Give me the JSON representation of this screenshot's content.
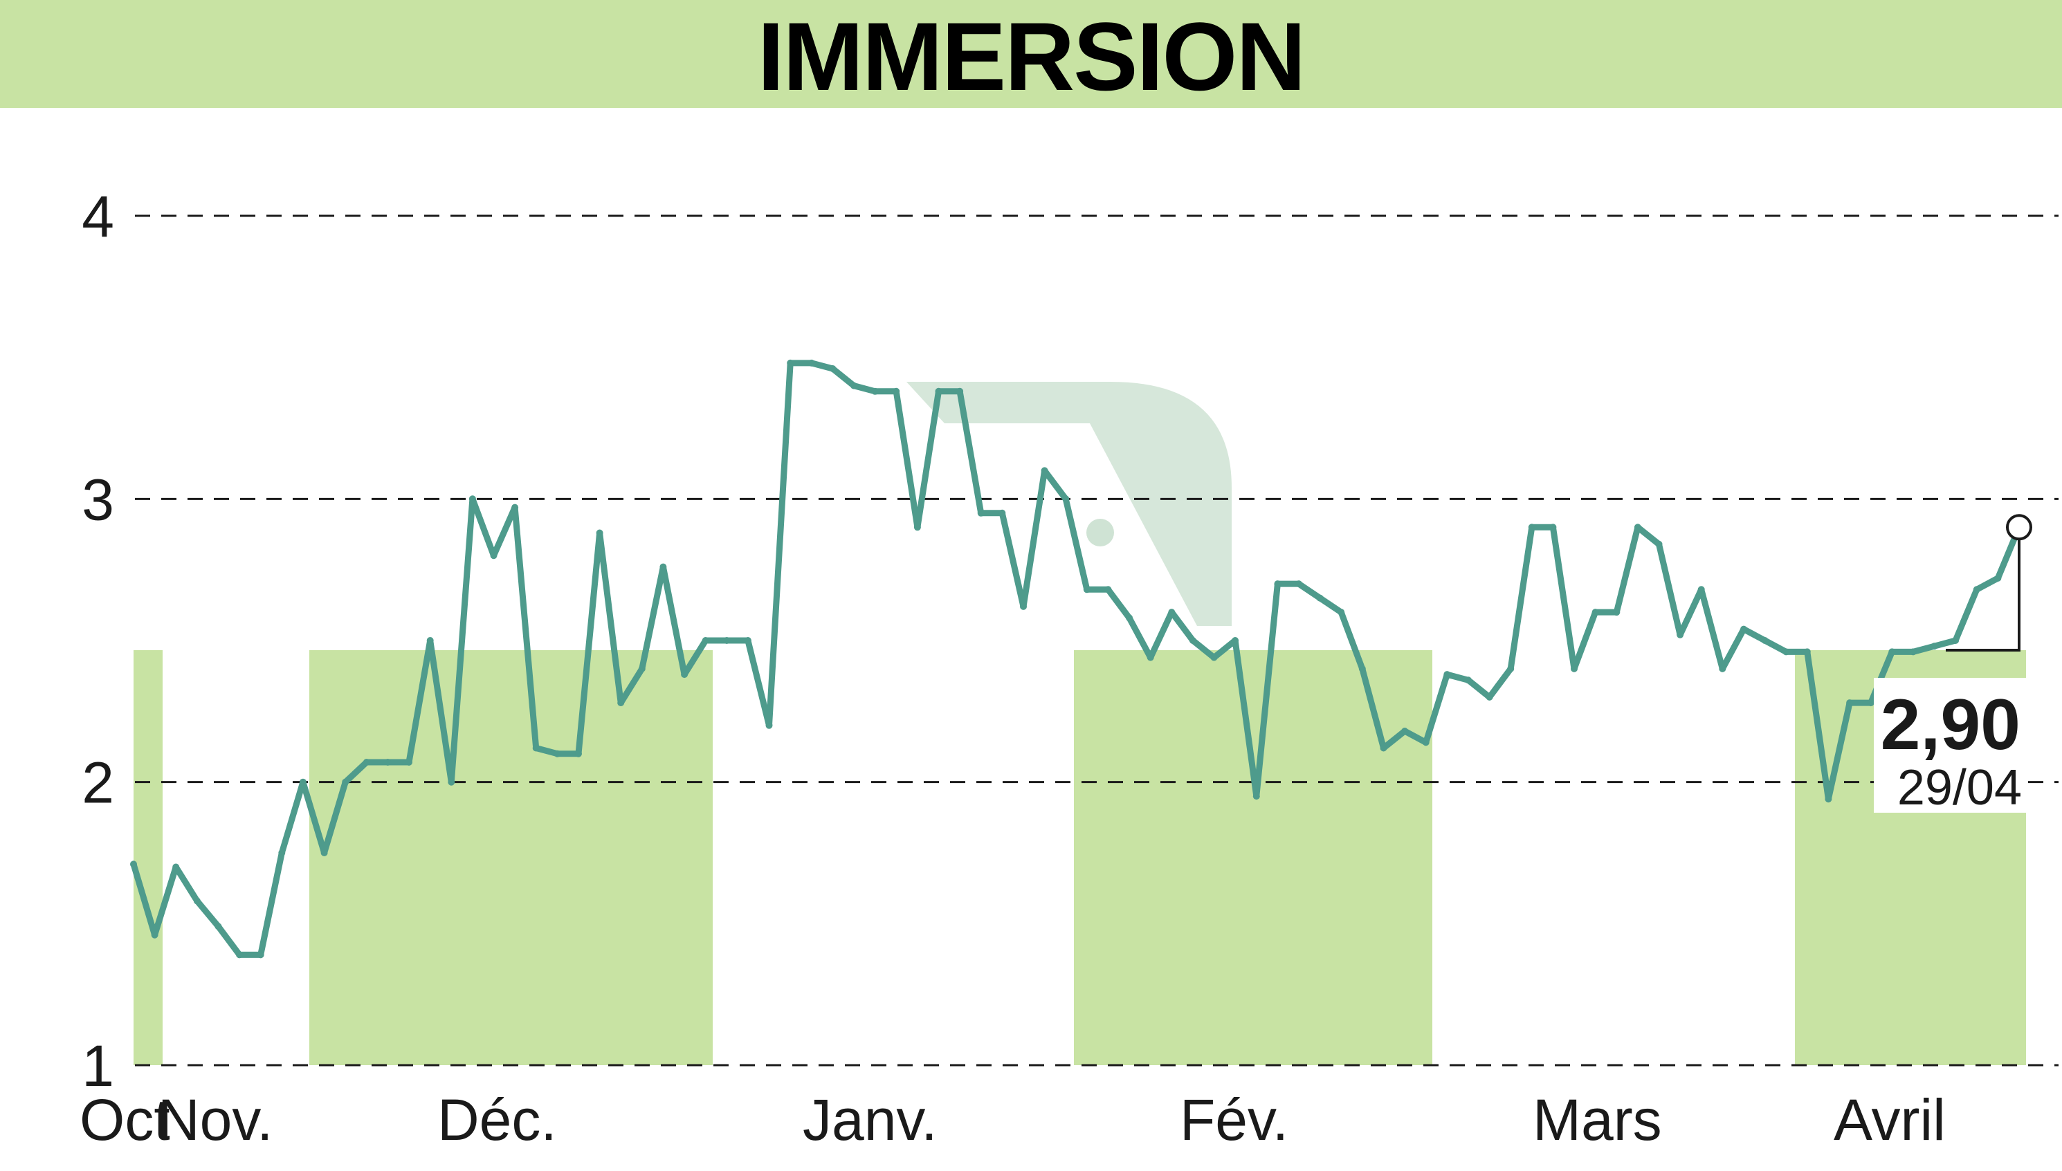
{
  "title": "IMMERSION",
  "colors": {
    "title_band": "#c8e3a3",
    "band_fill": "#c8e3a3",
    "line": "#4e9b8c",
    "grid": "#1a1a1a",
    "watermark": "#cfe3d4"
  },
  "chart_data": {
    "type": "line",
    "title": "IMMERSION",
    "xlabel": "",
    "ylabel": "",
    "ylim": [
      1,
      4
    ],
    "y_ticks": [
      1,
      2,
      3,
      4
    ],
    "grid": true,
    "months": [
      "Oct",
      "Nov.",
      "Déc.",
      "Janv.",
      "Fév.",
      "Mars",
      "Avril"
    ],
    "series": [
      {
        "values": [
          1.71,
          1.46,
          1.7,
          1.58,
          1.49,
          1.39,
          1.39,
          1.75,
          2.0,
          1.75,
          2.0,
          2.07,
          2.07,
          2.07,
          2.5,
          2.0,
          3.0,
          2.8,
          2.97,
          2.12,
          2.1,
          2.1,
          2.88,
          2.28,
          2.4,
          2.76,
          2.38,
          2.5,
          2.5,
          2.5,
          2.2,
          3.48,
          3.48,
          3.46,
          3.4,
          3.38,
          3.38,
          2.9,
          3.38,
          3.38,
          2.95,
          2.95,
          2.62,
          3.1,
          3.0,
          2.68,
          2.68,
          2.58,
          2.44,
          2.6,
          2.5,
          2.44,
          2.5,
          1.95,
          2.7,
          2.7,
          2.65,
          2.6,
          2.4,
          2.12,
          2.18,
          2.14,
          2.38,
          2.36,
          2.3,
          2.4,
          2.9,
          2.9,
          2.4,
          2.6,
          2.6,
          2.9,
          2.84,
          2.52,
          2.68,
          2.4,
          2.54,
          2.5,
          2.46,
          2.46,
          1.94,
          2.28,
          2.28,
          2.46,
          2.46,
          2.48,
          2.5,
          2.68,
          2.72,
          2.9
        ]
      }
    ],
    "last_value": "2,90",
    "last_date": "29/04"
  }
}
